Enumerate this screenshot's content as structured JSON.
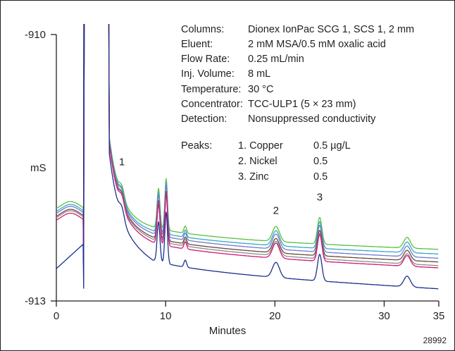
{
  "chart_data": {
    "type": "line",
    "title": "",
    "xlabel": "Minutes",
    "ylabel": "mS",
    "xlim": [
      0,
      35
    ],
    "x_ticks": [
      0,
      10,
      20,
      30,
      35
    ],
    "y_ticks": [
      {
        "value": -910,
        "label": "-910"
      },
      {
        "value": -913,
        "label": "-913"
      }
    ],
    "ylim": [
      -913,
      -910
    ],
    "grid": false,
    "legend": "none",
    "method": {
      "columns": {
        "label": "Columns:",
        "value": "Dionex IonPac SCG 1, SCS 1, 2 mm"
      },
      "eluent": {
        "label": "Eluent:",
        "value": "2 mM MSA/0.5 mM oxalic acid"
      },
      "flow_rate": {
        "label": "Flow Rate:",
        "value": "0.25 mL/min"
      },
      "inj_volume": {
        "label": "Inj. Volume:",
        "value": "8 mL"
      },
      "temperature": {
        "label": "Temperature:",
        "value": "30 °C"
      },
      "concentrator": {
        "label": "Concentrator:",
        "value": "TCC-ULP1 (5 × 23 mm)"
      },
      "detection": {
        "label": "Detection:",
        "value": "Nonsuppressed conductivity"
      }
    },
    "peaks_label": "Peaks:",
    "peaks": [
      {
        "number": "1",
        "name": "1. Copper",
        "amount": "0.5 µg/L",
        "time": 6.0,
        "apex": -911.55
      },
      {
        "number": "2",
        "name": "2. Nickel",
        "amount": "0.5",
        "time": 20.1,
        "apex": -912.1
      },
      {
        "number": "3",
        "name": "3. Zinc",
        "amount": "0.5",
        "time": 24.1,
        "apex": -911.95
      }
    ],
    "figure_id": "28992",
    "series": [
      {
        "color": "#5bbf3f",
        "offset": 0.0,
        "tail_drop": 0.02,
        "peak_gain": 1.0
      },
      {
        "color": "#3aa6c6",
        "offset": 0.06,
        "tail_drop": 0.03,
        "peak_gain": 1.0
      },
      {
        "color": "#6f7bd0",
        "offset": 0.1,
        "tail_drop": 0.05,
        "peak_gain": 1.0
      },
      {
        "color": "#6a4a3a",
        "offset": 0.16,
        "tail_drop": 0.05,
        "peak_gain": 0.95
      },
      {
        "color": "#8c8c8c",
        "offset": 0.19,
        "tail_drop": 0.07,
        "peak_gain": 0.95
      },
      {
        "color": "#d4177a",
        "offset": 0.24,
        "tail_drop": 0.06,
        "peak_gain": 1.0
      },
      {
        "color": "#1c2f8e",
        "offset": 0.52,
        "tail_drop": 0.1,
        "peak_gain": 1.0
      }
    ]
  }
}
